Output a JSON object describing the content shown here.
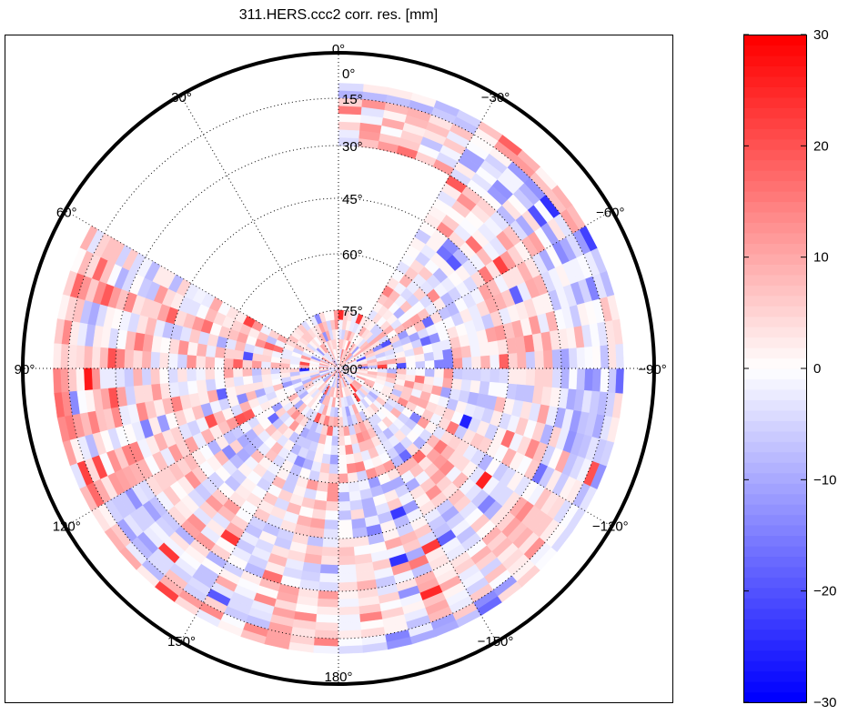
{
  "chart_data": {
    "type": "heatmap",
    "subtype": "polar-skyplot",
    "title": "311.HERS.ccc2 corr. res. [mm]",
    "azimuth_direction": "counterclockwise, 0 at top",
    "azimuth_tick_labels": [
      "0°",
      "30°",
      "60°",
      "90°",
      "120°",
      "150°",
      "180°",
      "−150°",
      "−120°",
      "−90°",
      "−60°",
      "−30°"
    ],
    "azimuth_ticks": [
      0,
      30,
      60,
      90,
      120,
      150,
      180,
      210,
      240,
      270,
      300,
      330
    ],
    "elevation_tick_labels": [
      "0°",
      "15°",
      "30°",
      "45°",
      "60°",
      "75°",
      "90°"
    ],
    "elevation_ticks": [
      0,
      15,
      30,
      45,
      60,
      75,
      90
    ],
    "elevation_data_min": 10,
    "colorbar": {
      "range": [
        -30,
        30
      ],
      "ticks": [
        30,
        20,
        10,
        0,
        -10,
        -20,
        -30
      ],
      "tick_labels": [
        "30",
        "20",
        "10",
        "0",
        "−10",
        "−20",
        "−30"
      ],
      "colormap": "blue-white-red",
      "low_color": "#0000ff",
      "mid_color": "#ffffff",
      "high_color": "#ff0000",
      "levels": 64
    },
    "grid": true,
    "note": "Approximate mean residual (mm) per 30° azimuth sector (rows, ccw from 0°) and elevation band (cols: 10-15,15-30,30-45,45-60,60-75,75-90); null = no data",
    "sector_azimuths": [
      0,
      30,
      60,
      90,
      120,
      150,
      180,
      210,
      240,
      270,
      300,
      330
    ],
    "band_elevations": [
      "10-15",
      "15-30",
      "30-45",
      "45-60",
      "60-75",
      "75-90"
    ],
    "values": [
      [
        null,
        null,
        null,
        null,
        null,
        3
      ],
      [
        null,
        null,
        null,
        null,
        null,
        2
      ],
      [
        4,
        3,
        4,
        3,
        3,
        2
      ],
      [
        8,
        6,
        3,
        2,
        1,
        -1
      ],
      [
        2,
        -3,
        2,
        -2,
        1,
        -2
      ],
      [
        6,
        3,
        -2,
        4,
        -3,
        2
      ],
      [
        -6,
        2,
        4,
        -3,
        6,
        3
      ],
      [
        -5,
        3,
        -4,
        5,
        -2,
        2
      ],
      [
        -4,
        -6,
        2,
        -2,
        3,
        1
      ],
      [
        -3,
        -2,
        5,
        1,
        -2,
        2
      ],
      [
        5,
        -4,
        3,
        -2,
        1,
        2
      ],
      [
        -6,
        4,
        null,
        null,
        null,
        3
      ]
    ]
  }
}
